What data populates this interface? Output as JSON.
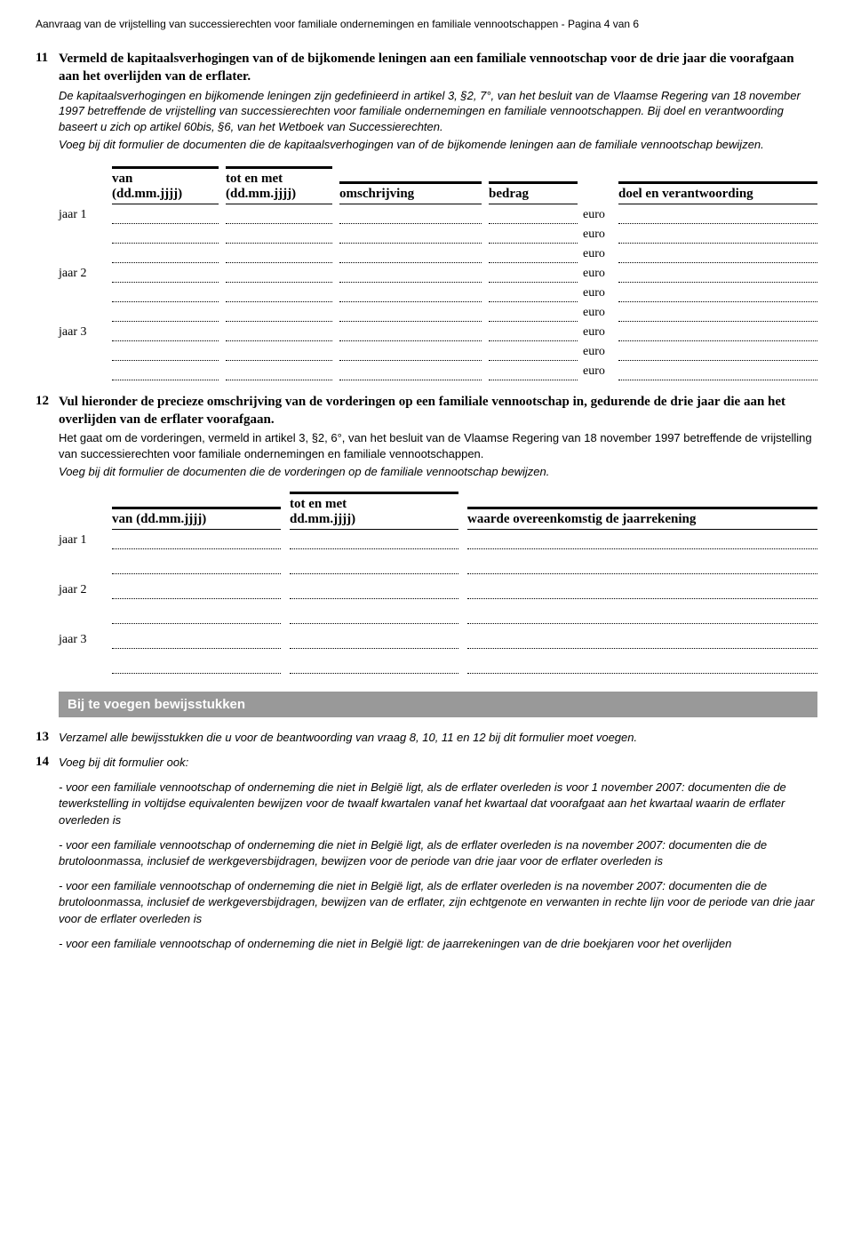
{
  "header": "Aanvraag van de vrijstelling van successierechten voor familiale ondernemingen en familiale vennootschappen - Pagina 4 van 6",
  "s11": {
    "num": "11",
    "title": "Vermeld de kapitaalsverhogingen van of de bijkomende leningen aan een familiale vennootschap voor de drie jaar die voorafgaan aan het overlijden van de erflater.",
    "note1": "De kapitaalsverhogingen en bijkomende leningen zijn gedefinieerd in artikel 3, §2, 7°, van het besluit van de Vlaamse Regering van 18 november 1997 betreffende de vrijstelling van successierechten voor familiale ondernemingen en familiale vennootschappen. Bij doel en verantwoording baseert u zich op artikel 60bis, §6, van het Wetboek van Successierechten.",
    "note2": "Voeg bij dit formulier de documenten die de kapitaalsverhogingen van of de bijkomende leningen aan de familiale vennootschap bewijzen.",
    "headers": {
      "van": "van",
      "van_sub": "(dd.mm.jjjj)",
      "tot": "tot en met",
      "tot_sub": "(dd.mm.jjjj)",
      "oms": "omschrijving",
      "bedrag": "bedrag",
      "doel": "doel en verantwoording"
    },
    "years": [
      "jaar 1",
      "jaar 2",
      "jaar 3"
    ],
    "euro": "euro"
  },
  "s12": {
    "num": "12",
    "title": "Vul hieronder de precieze omschrijving van de vorderingen op een familiale vennootschap in, gedurende de drie jaar die aan het overlijden van de erflater voorafgaan.",
    "note1": "Het gaat om de vorderingen, vermeld in artikel 3, §2, 6°, van het besluit van de Vlaamse Regering van 18 november 1997 betreffende de vrijstelling van successierechten voor familiale ondernemingen en familiale vennootschappen.",
    "note2": "Voeg bij dit formulier de documenten die de vorderingen op de familiale vennootschap bewijzen.",
    "headers": {
      "van": "van (dd.mm.jjjj)",
      "tot": "tot en met",
      "tot_sub": "dd.mm.jjjj)",
      "waarde": "waarde overeenkomstig de jaarrekening"
    },
    "years": [
      "jaar 1",
      "jaar 2",
      "jaar 3"
    ]
  },
  "banner": "Bij te voegen bewijsstukken",
  "s13": {
    "num": "13",
    "text": "Verzamel alle bewijsstukken die u voor de beantwoording van vraag 8, 10, 11 en 12 bij dit formulier moet voegen."
  },
  "s14": {
    "num": "14",
    "intro": "Voeg bij dit formulier ook:",
    "bullets": [
      "- voor een familiale vennootschap of onderneming die niet in België ligt, als de erflater overleden is voor 1 november 2007: documenten die de tewerkstelling in voltijdse equivalenten bewijzen voor de twaalf kwartalen vanaf het kwartaal dat voorafgaat aan het kwartaal waarin de erflater overleden is",
      "- voor een familiale vennootschap of onderneming die niet in België ligt, als de erflater overleden is na november 2007: documenten die de brutoloonmassa, inclusief de werkgeversbijdragen, bewijzen voor de periode van drie jaar voor de erflater overleden is",
      "- voor een familiale vennootschap of onderneming die niet in België ligt, als de erflater overleden is na november 2007: documenten die de brutoloonmassa, inclusief de werkgeversbijdragen, bewijzen van de erflater, zijn echtgenote en verwanten in rechte lijn voor de periode van drie jaar voor de erflater overleden is",
      "- voor een familiale vennootschap of onderneming die niet in België ligt: de jaarrekeningen van de drie boekjaren voor het overlijden"
    ]
  }
}
